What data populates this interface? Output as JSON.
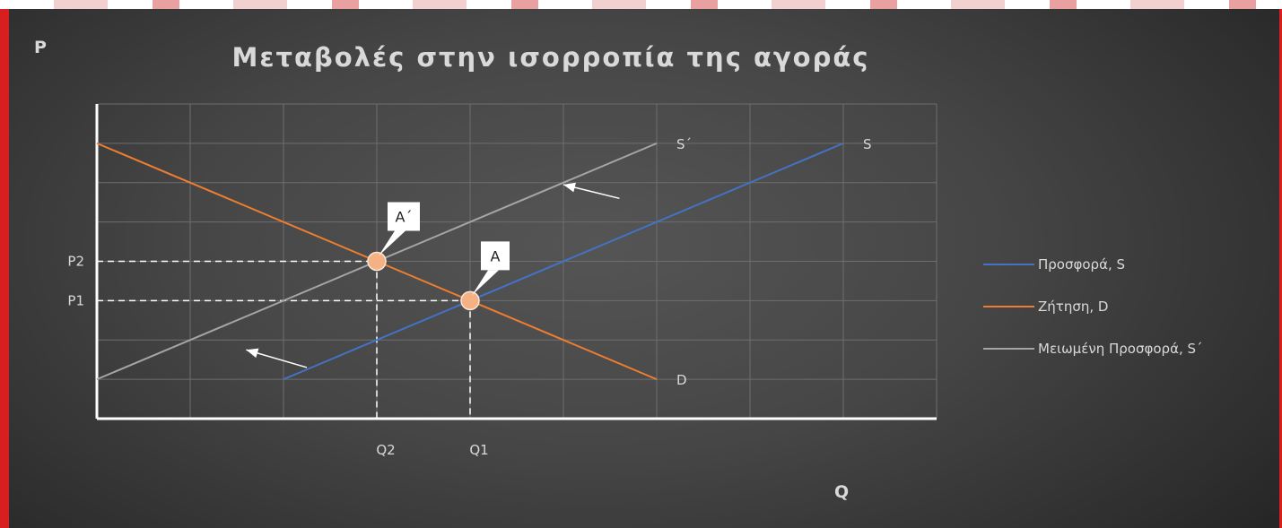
{
  "chart_data": {
    "type": "line",
    "title": "Μεταβολές στην ισορροπία  της αγοράς",
    "y_axis_label": "P",
    "x_axis_label": "Q",
    "xlim": [
      0,
      9
    ],
    "ylim": [
      0,
      8
    ],
    "grid": true,
    "legend_position": "right",
    "series": [
      {
        "name": "Προσφορά, S",
        "color": "#4472c4",
        "x": [
          2,
          8
        ],
        "y": [
          1,
          7
        ],
        "end_label": "S"
      },
      {
        "name": "Ζήτηση, D",
        "color": "#ed7d31",
        "x": [
          0,
          6
        ],
        "y": [
          7,
          1
        ],
        "end_label": "D"
      },
      {
        "name": "Μειωμένη Προσφορά, S΄",
        "color": "#a5a5a5",
        "x": [
          0,
          6
        ],
        "y": [
          1,
          7
        ],
        "end_label": "S΄"
      }
    ],
    "equilibria": [
      {
        "label": "A",
        "x": 4,
        "y": 3,
        "x_tick": "Q1",
        "y_tick": "P1"
      },
      {
        "label": "A΄",
        "x": 3,
        "y": 4,
        "x_tick": "Q2",
        "y_tick": "P2"
      }
    ],
    "shift_arrows": [
      {
        "from": [
          5.6,
          5.6
        ],
        "to": [
          5.0,
          5.95
        ]
      },
      {
        "from": [
          2.25,
          1.3
        ],
        "to": [
          1.6,
          1.75
        ]
      }
    ]
  },
  "colors": {
    "marker_fill": "#f4b183",
    "marker_stroke": "#fbe5d6",
    "grid": "#6e6e6e",
    "axis": "#ffffff",
    "dashed": "#ffffff"
  }
}
